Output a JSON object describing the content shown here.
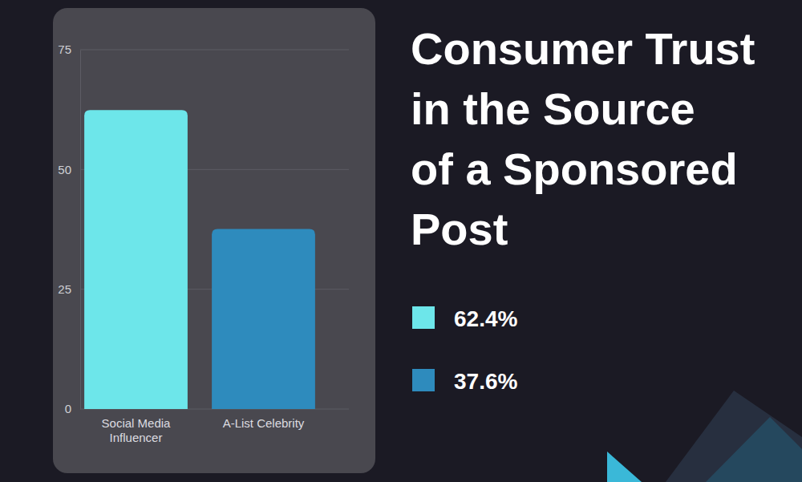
{
  "chart_data": {
    "type": "bar",
    "title": "Consumer Trust in the Source of a Sponsored Post",
    "categories": [
      "Social Media Influencer",
      "A-List Celebrity"
    ],
    "values": [
      62.4,
      37.6
    ],
    "value_labels": [
      "62.4%",
      "37.6%"
    ],
    "colors": [
      "#6de6ea",
      "#2e8bbd"
    ],
    "ylim": [
      0,
      75
    ],
    "yticks": [
      0,
      25,
      50,
      75
    ],
    "grid": true,
    "legend": "right"
  }
}
